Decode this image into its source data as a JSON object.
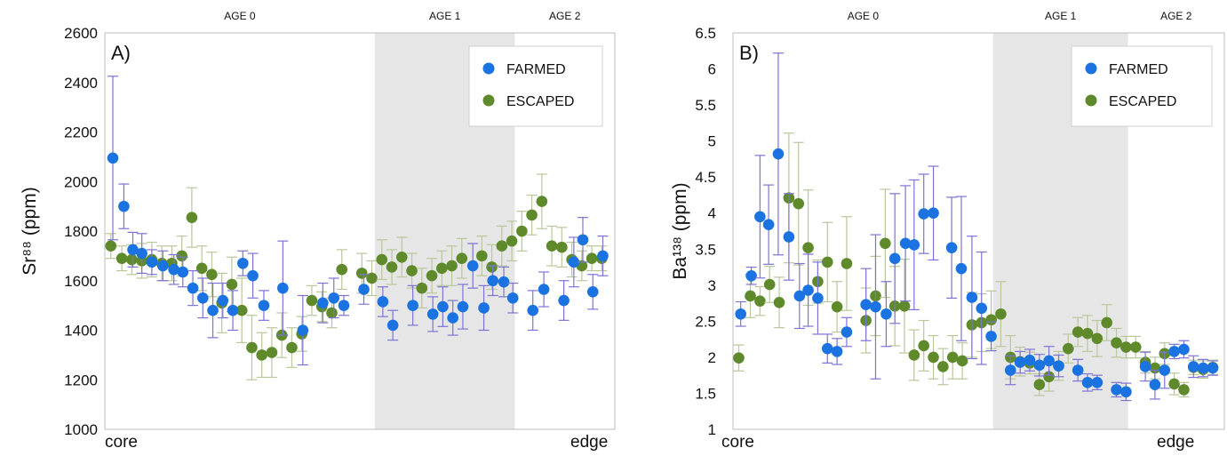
{
  "colors": {
    "farmed": "#1a73e0",
    "escaped": "#5e8a2c",
    "farmed_err": "#7b74d6",
    "escaped_err": "#b9c79a",
    "shade": "#e6e6e6",
    "frame": "#bdbdbd"
  },
  "chart_data": [
    {
      "type": "scatter",
      "panel_label": "A)",
      "ylabel": "Sr⁸⁸ (ppm)",
      "ylim": [
        1000,
        2600
      ],
      "yticks": [
        "2600",
        "2400",
        "2200",
        "2000",
        "1800",
        "1600",
        "1400",
        "1200",
        "1000"
      ],
      "x_start_label": "core",
      "x_end_label": "edge",
      "regions": [
        {
          "label": "AGE 0",
          "x": [
            0,
            27
          ],
          "shaded": false
        },
        {
          "label": "AGE 1",
          "x": [
            27,
            41
          ],
          "shaded": true
        },
        {
          "label": "AGE 2",
          "x": [
            41,
            51
          ],
          "shaded": false
        }
      ],
      "legend": {
        "placement": "top-right",
        "entries": [
          "FARMED",
          "ESCAPED"
        ]
      },
      "series": [
        {
          "name": "FARMED",
          "x": [
            0.8,
            1.9,
            2.8,
            3.7,
            4.7,
            5.8,
            6.9,
            7.8,
            8.8,
            9.8,
            10.8,
            11.8,
            12.8,
            13.8,
            14.8,
            15.9,
            17.8,
            19.8,
            21.8,
            22.9,
            23.9,
            25.9,
            27.8,
            28.8,
            30.8,
            32.8,
            33.8,
            34.8,
            35.8,
            36.8,
            37.9,
            38.8,
            39.9,
            40.8,
            42.8,
            43.9,
            45.9,
            46.9,
            47.8,
            48.8,
            49.8
          ],
          "y": [
            2095,
            1900,
            1725,
            1710,
            1675,
            1660,
            1645,
            1635,
            1570,
            1530,
            1480,
            1520,
            1480,
            1670,
            1620,
            1500,
            1570,
            1400,
            1510,
            1530,
            1500,
            1565,
            1515,
            1420,
            1500,
            1465,
            1495,
            1450,
            1495,
            1660,
            1490,
            1600,
            1595,
            1530,
            1480,
            1565,
            1520,
            1675,
            1765,
            1555,
            1700
          ],
          "err": [
            330,
            90,
            70,
            80,
            50,
            60,
            60,
            60,
            70,
            80,
            110,
            70,
            80,
            50,
            90,
            60,
            190,
            140,
            80,
            80,
            40,
            60,
            60,
            60,
            80,
            70,
            80,
            70,
            90,
            90,
            90,
            60,
            60,
            60,
            80,
            70,
            80,
            100,
            90,
            70,
            80
          ]
        },
        {
          "name": "ESCAPED",
          "x": [
            0.6,
            1.7,
            2.7,
            3.7,
            4.7,
            5.7,
            6.7,
            7.7,
            8.7,
            9.7,
            10.7,
            11.7,
            12.7,
            13.7,
            14.7,
            15.7,
            16.7,
            17.7,
            18.7,
            19.7,
            20.7,
            21.7,
            22.7,
            23.7,
            25.7,
            26.7,
            27.7,
            28.7,
            29.7,
            30.7,
            31.7,
            32.7,
            33.7,
            34.7,
            35.7,
            37.7,
            38.7,
            39.7,
            40.7,
            41.7,
            42.7,
            43.7,
            44.7,
            45.7,
            46.7,
            47.7,
            48.7,
            49.7
          ],
          "y": [
            1740,
            1690,
            1685,
            1680,
            1685,
            1670,
            1670,
            1700,
            1855,
            1650,
            1625,
            1510,
            1585,
            1480,
            1330,
            1300,
            1310,
            1380,
            1330,
            1385,
            1520,
            1495,
            1470,
            1645,
            1630,
            1610,
            1685,
            1655,
            1695,
            1640,
            1570,
            1620,
            1650,
            1660,
            1690,
            1700,
            1655,
            1740,
            1760,
            1800,
            1865,
            1920,
            1740,
            1735,
            1685,
            1660,
            1690,
            1690
          ],
          "err": [
            50,
            50,
            60,
            70,
            70,
            70,
            70,
            80,
            120,
            90,
            90,
            120,
            110,
            130,
            130,
            90,
            100,
            90,
            80,
            70,
            60,
            60,
            60,
            80,
            80,
            70,
            80,
            70,
            80,
            70,
            80,
            70,
            70,
            80,
            80,
            80,
            90,
            80,
            80,
            80,
            80,
            110,
            80,
            80,
            70,
            60,
            50,
            50
          ]
        }
      ]
    },
    {
      "type": "scatter",
      "panel_label": "B)",
      "ylabel": "Ba¹³⁸ (ppm)",
      "ylim": [
        1,
        6.5
      ],
      "yticks": [
        "6.5",
        "6",
        "5.5",
        "5",
        "4.5",
        "4",
        "3.5",
        "3",
        "2.5",
        "2",
        "1.5",
        "1"
      ],
      "x_start_label": "core",
      "x_end_label": "edge",
      "regions": [
        {
          "label": "AGE 0",
          "x": [
            0,
            27
          ],
          "shaded": false
        },
        {
          "label": "AGE 1",
          "x": [
            27,
            41
          ],
          "shaded": true
        },
        {
          "label": "AGE 2",
          "x": [
            41,
            51
          ],
          "shaded": false
        }
      ],
      "legend": {
        "placement": "top-right",
        "entries": [
          "FARMED",
          "ESCAPED"
        ]
      },
      "series": [
        {
          "name": "FARMED",
          "x": [
            0.8,
            1.9,
            2.8,
            3.7,
            4.7,
            5.8,
            6.9,
            7.8,
            8.8,
            9.8,
            10.8,
            11.8,
            13.8,
            14.8,
            15.9,
            16.8,
            17.9,
            18.8,
            19.8,
            20.8,
            22.7,
            23.7,
            24.8,
            25.8,
            26.8,
            28.8,
            29.8,
            30.8,
            31.8,
            32.8,
            33.8,
            35.8,
            36.8,
            37.8,
            39.8,
            40.8,
            42.8,
            43.8,
            44.8,
            45.8,
            46.8,
            47.8,
            48.8,
            49.8
          ],
          "y": [
            2.6,
            3.13,
            3.95,
            3.84,
            4.82,
            3.67,
            2.85,
            2.93,
            2.82,
            2.12,
            2.08,
            2.35,
            2.73,
            2.7,
            2.6,
            3.37,
            3.58,
            3.56,
            3.99,
            4.0,
            3.52,
            3.23,
            2.83,
            2.68,
            2.29,
            1.82,
            1.93,
            1.96,
            1.89,
            1.95,
            1.88,
            1.82,
            1.65,
            1.65,
            1.55,
            1.52,
            1.87,
            1.62,
            1.82,
            2.08,
            2.11,
            1.87,
            1.85,
            1.85
          ],
          "err": [
            0.17,
            0.12,
            0.85,
            0.55,
            1.4,
            0.6,
            0.45,
            0.5,
            0.5,
            0.2,
            0.18,
            0.2,
            0.5,
            1.0,
            0.45,
            0.9,
            0.8,
            0.9,
            0.55,
            0.65,
            0.7,
            1.0,
            0.85,
            0.78,
            0.2,
            0.2,
            0.15,
            0.15,
            0.15,
            0.2,
            0.15,
            0.15,
            0.12,
            0.1,
            0.1,
            0.12,
            0.2,
            0.2,
            0.25,
            0.1,
            0.12,
            0.15,
            0.12,
            0.1
          ]
        },
        {
          "name": "ESCAPED",
          "x": [
            0.6,
            1.8,
            2.8,
            3.8,
            4.8,
            5.8,
            6.8,
            7.8,
            8.8,
            9.8,
            10.8,
            11.8,
            13.8,
            14.8,
            15.8,
            16.8,
            17.8,
            18.8,
            19.8,
            20.8,
            21.8,
            22.8,
            23.8,
            24.8,
            25.8,
            26.8,
            27.8,
            28.8,
            29.8,
            30.8,
            31.8,
            32.8,
            33.8,
            34.8,
            35.8,
            36.8,
            37.8,
            38.8,
            39.8,
            40.8,
            41.8,
            42.8,
            43.8,
            44.8,
            45.8,
            46.8,
            47.8,
            48.8,
            49.8
          ],
          "y": [
            1.99,
            2.85,
            2.78,
            3.01,
            2.76,
            4.21,
            4.13,
            3.52,
            3.05,
            3.32,
            2.7,
            3.3,
            2.51,
            2.85,
            3.58,
            2.71,
            2.71,
            2.03,
            2.16,
            2.0,
            1.87,
            2.0,
            1.95,
            2.45,
            2.48,
            2.52,
            2.6,
            2.0,
            1.94,
            1.92,
            1.62,
            1.73,
            1.88,
            2.12,
            2.35,
            2.33,
            2.26,
            2.48,
            2.2,
            2.14,
            2.14,
            1.93,
            1.85,
            2.05,
            1.63,
            1.55,
            1.86,
            1.83,
            1.86
          ],
          "err": [
            0.18,
            0.3,
            0.2,
            0.25,
            0.35,
            0.9,
            0.85,
            0.8,
            0.3,
            0.55,
            0.35,
            0.65,
            0.45,
            0.55,
            0.75,
            0.55,
            0.65,
            0.35,
            0.35,
            0.3,
            0.25,
            0.3,
            0.25,
            0.45,
            0.4,
            0.4,
            0.45,
            0.3,
            0.2,
            0.15,
            0.15,
            0.2,
            0.2,
            0.2,
            0.2,
            0.25,
            0.25,
            0.25,
            0.2,
            0.15,
            0.15,
            0.15,
            0.15,
            0.15,
            0.15,
            0.1,
            0.1,
            0.12,
            0.1
          ]
        }
      ]
    }
  ]
}
